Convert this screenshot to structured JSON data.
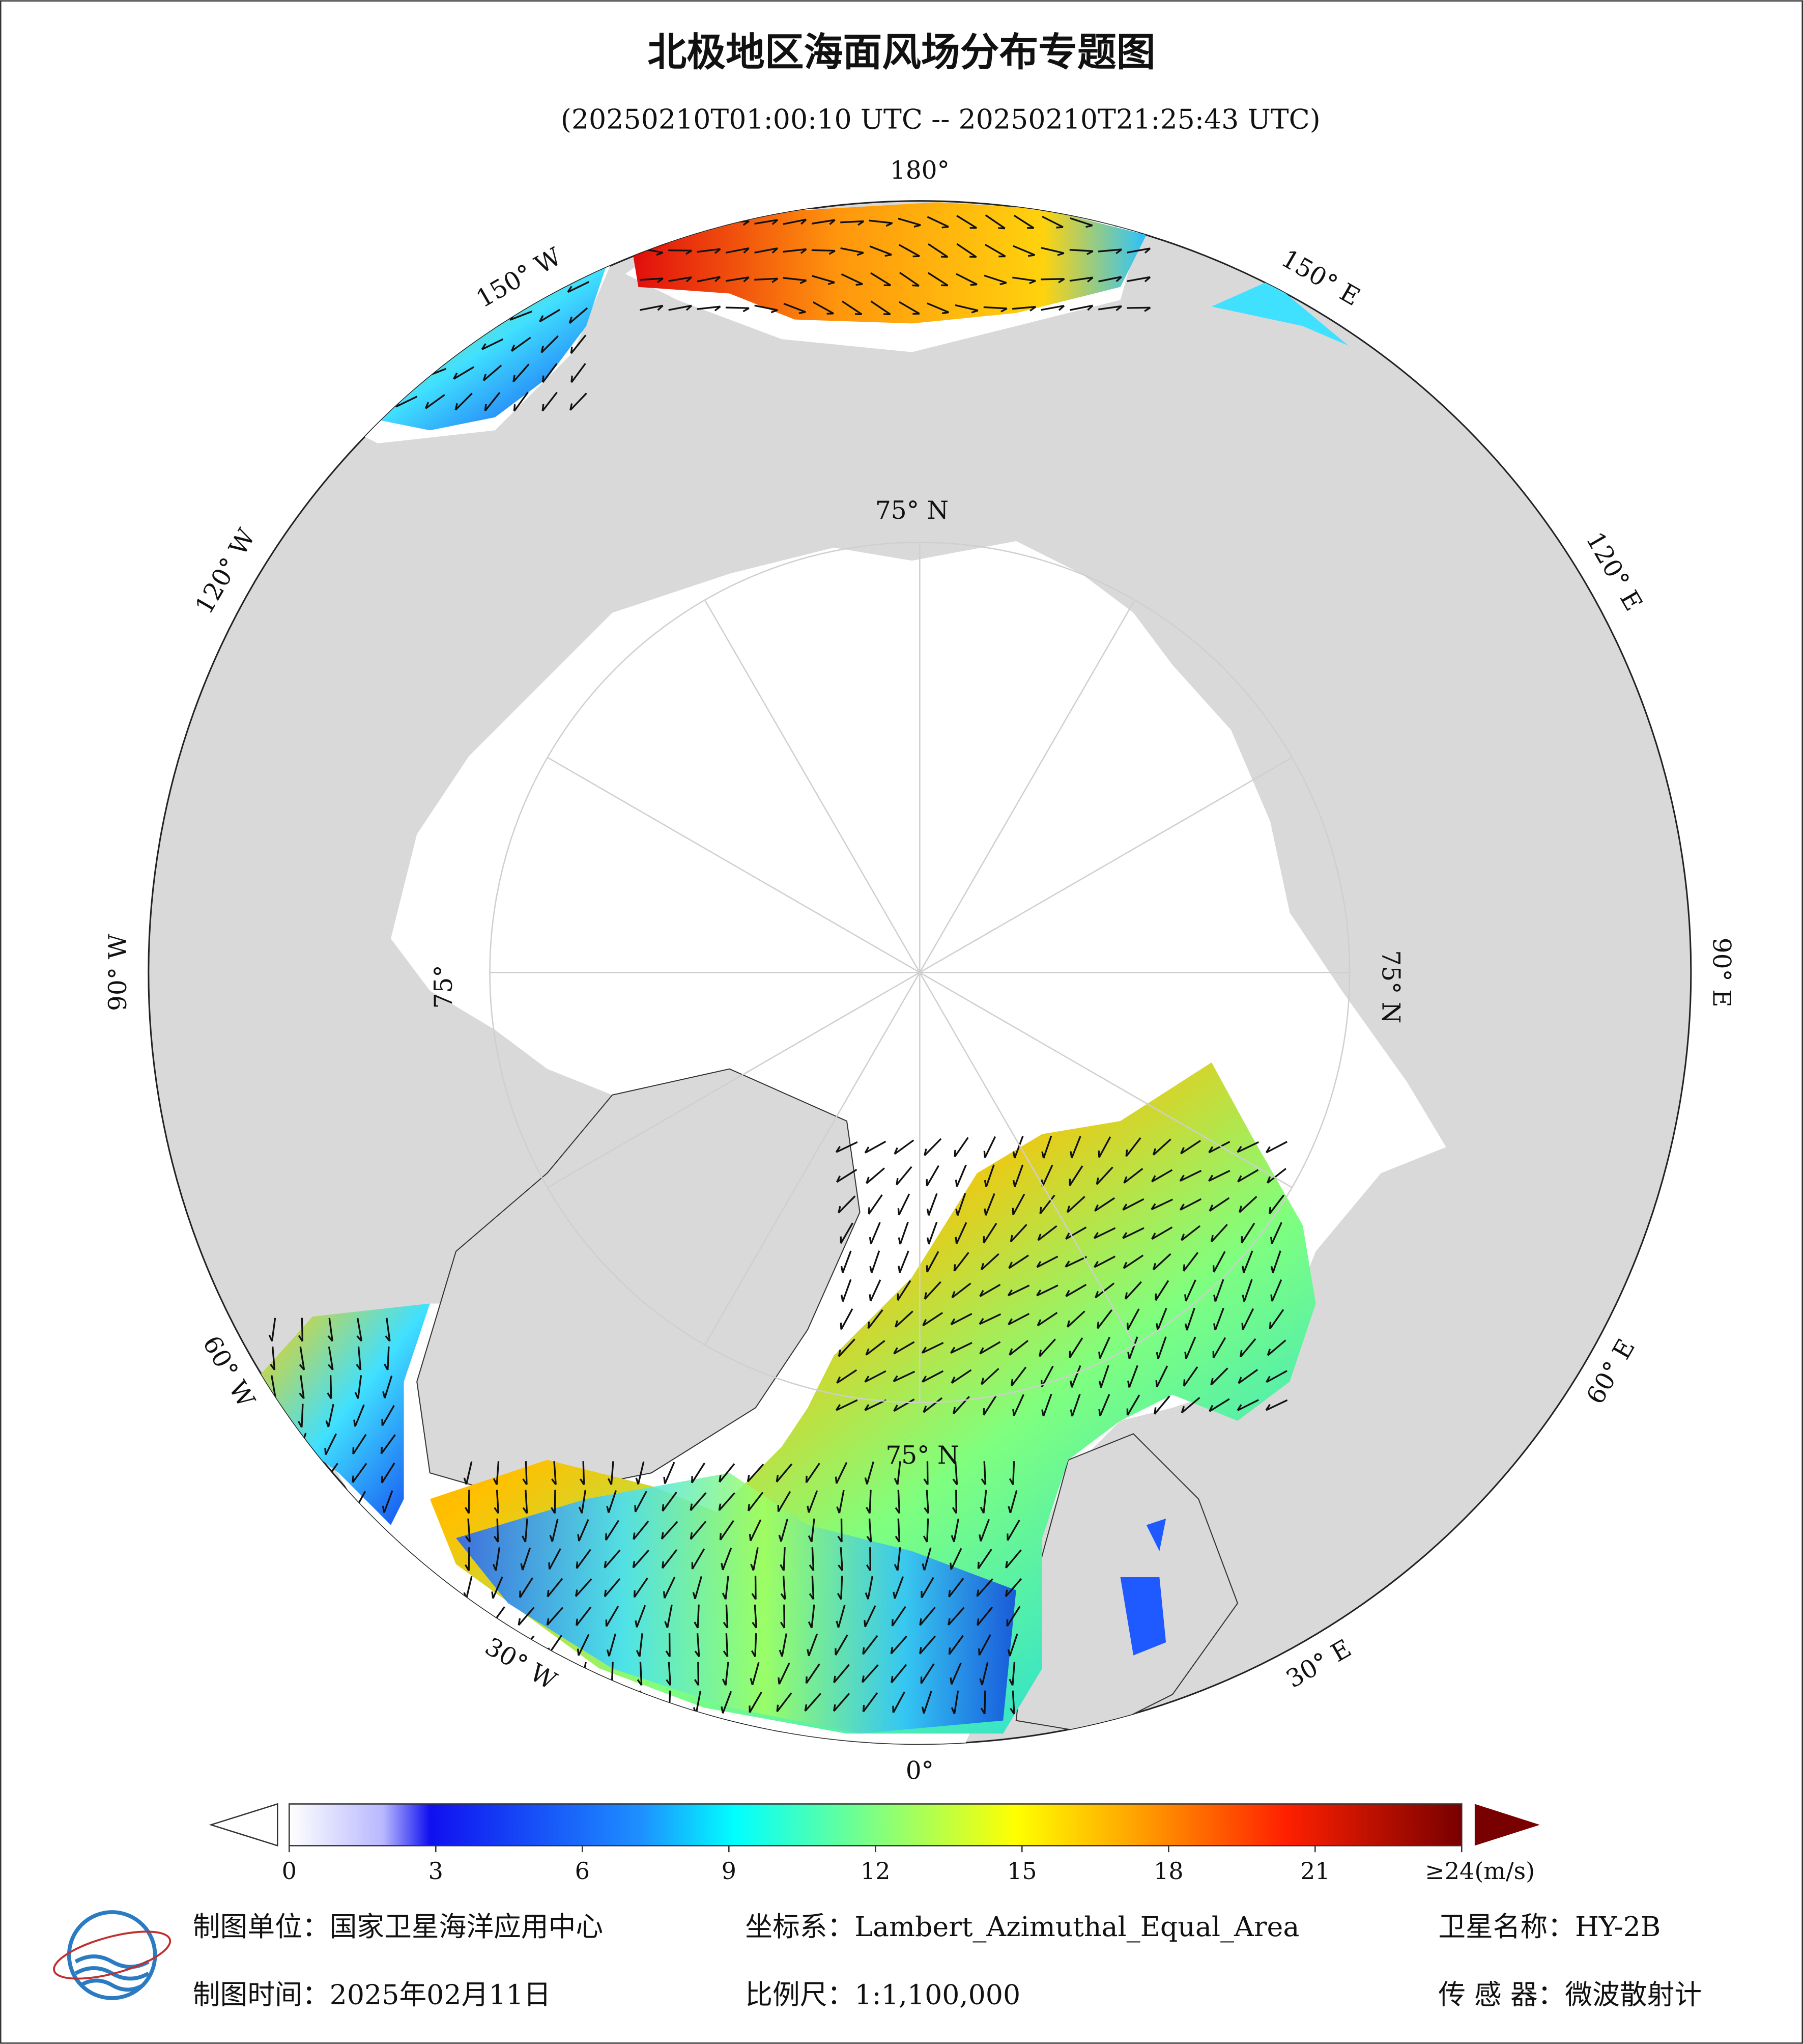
{
  "header": {
    "title": "北极地区海面风场分布专题图",
    "subtitle": "(20250210T01:00:10 UTC -- 20250210T21:25:43 UTC)"
  },
  "map": {
    "longitude_labels": [
      "180°",
      "150° E",
      "120° E",
      "90° E",
      "60° E",
      "30° E",
      "0°",
      "30° W",
      "60° W",
      "90° W",
      "120° W",
      "150° W"
    ],
    "latitude_labels": [
      "75° N",
      "75° N",
      "75°",
      "75° N"
    ]
  },
  "colorbar": {
    "lim": [
      0,
      24
    ],
    "ticks": [
      0,
      3,
      6,
      9,
      12,
      15,
      18,
      21,
      {
        "value": 24,
        "label": "≥24(m/s)"
      }
    ]
  },
  "footer": {
    "unit": "制图单位：国家卫星海洋应用中心",
    "projection": "坐标系：Lambert_Azimuthal_Equal_Area",
    "satellite": "卫星名称：HY-2B",
    "date": "制图时间：2025年02月11日",
    "scale": "比例尺：1:1,100,000",
    "sensor": "传 感 器：微波散射计"
  }
}
